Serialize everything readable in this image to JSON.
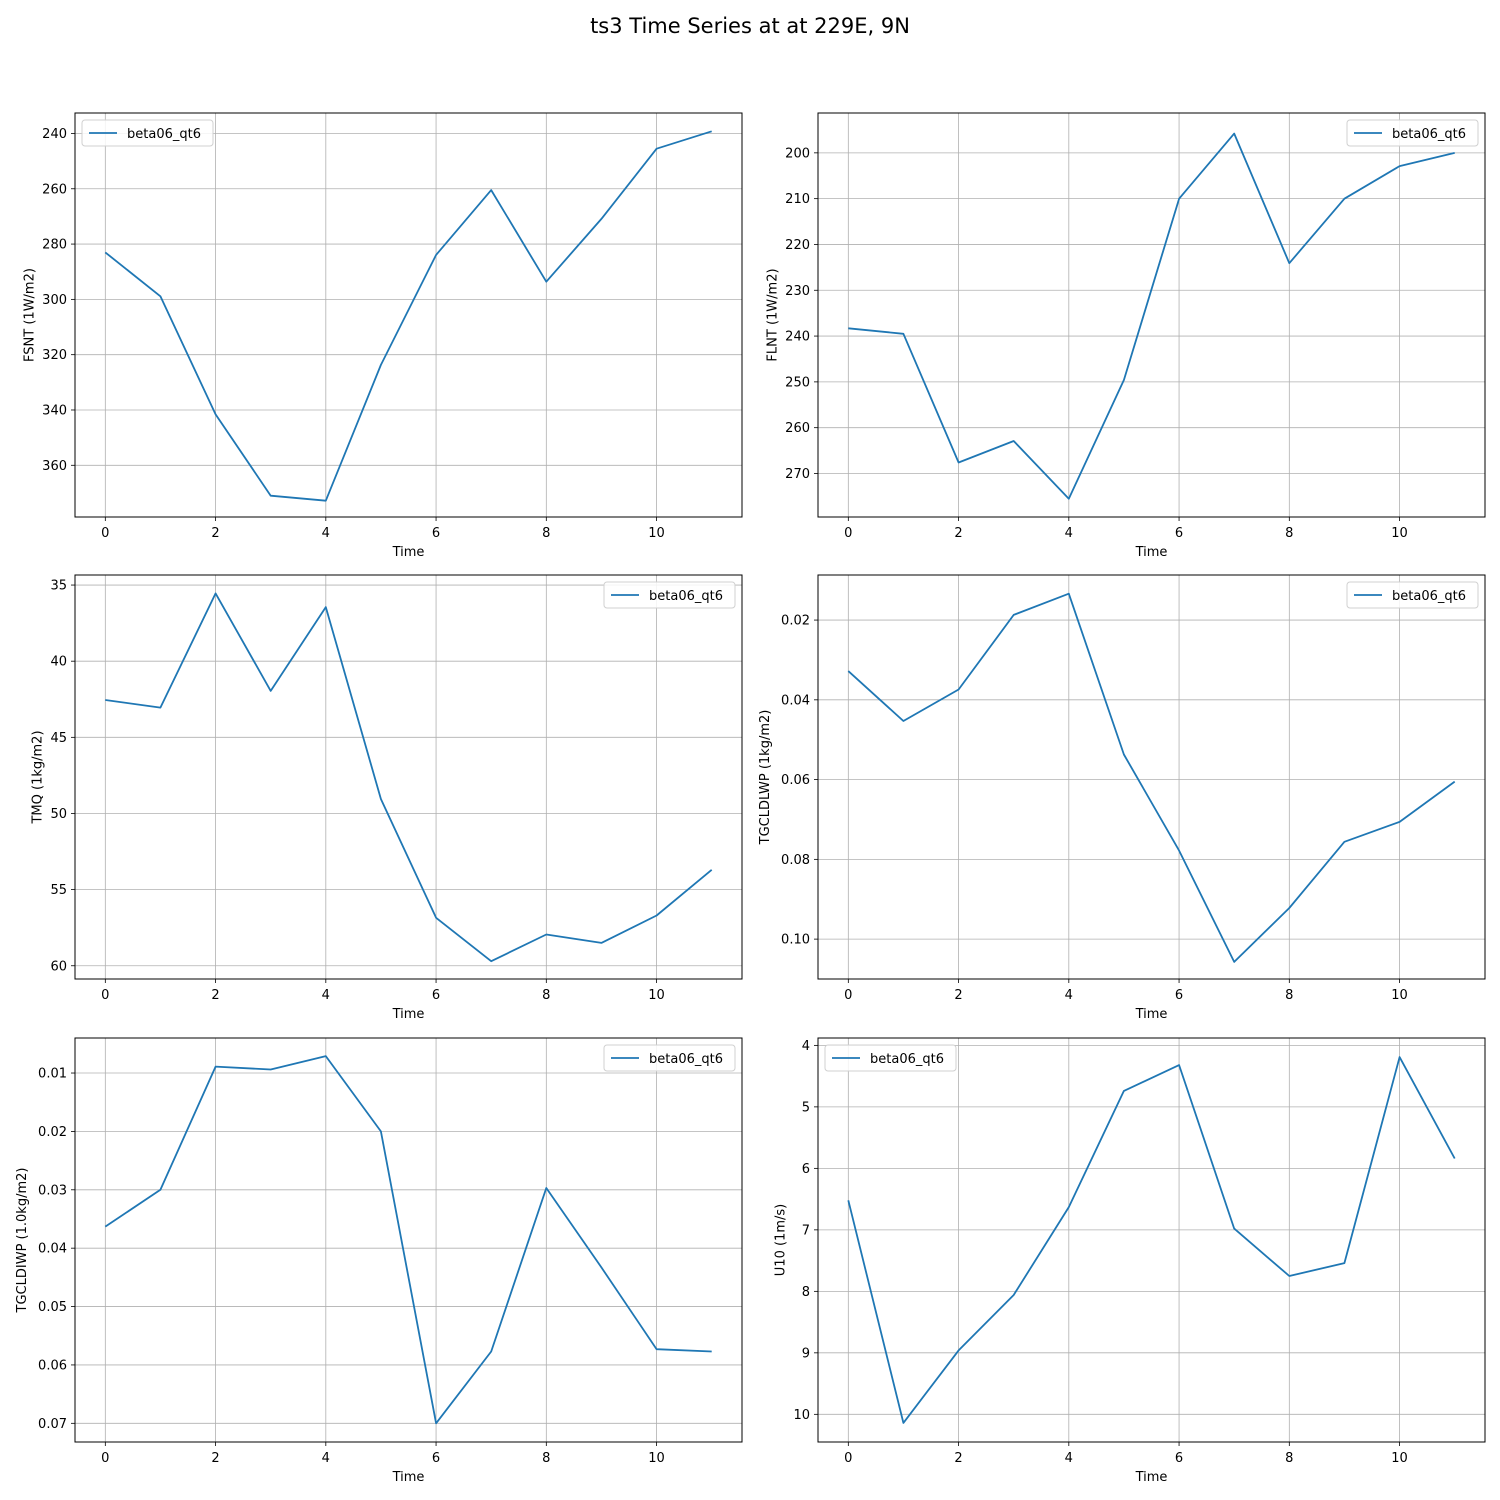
{
  "figure": {
    "title": "ts3 Time Series at at 229E, 9N"
  },
  "chart_data": [
    {
      "type": "line",
      "xlabel": "Time",
      "ylabel": "FSNT (1W/m2)",
      "x": [
        0,
        1,
        2,
        3,
        4,
        5,
        6,
        7,
        8,
        9,
        10,
        11
      ],
      "series": [
        {
          "name": "beta06_qt6",
          "color": "#1f77b4",
          "values": [
            283.0,
            298.9,
            341.6,
            371.0,
            372.8,
            323.7,
            283.9,
            260.5,
            293.6,
            270.9,
            245.5,
            239.2
          ]
        }
      ],
      "xlim": [
        -0.55,
        11.55
      ],
      "ylim": [
        378.7,
        232.6
      ],
      "inverted_y": true,
      "xticks": [
        0,
        2,
        4,
        6,
        8,
        10
      ],
      "yticks": [
        240,
        260,
        280,
        300,
        320,
        340,
        360
      ],
      "ytick_labels": [
        "240",
        "260",
        "280",
        "300",
        "320",
        "340",
        "360"
      ],
      "legend_position": "top-left",
      "grid": true
    },
    {
      "type": "line",
      "xlabel": "Time",
      "ylabel": "FLNT (1W/m2)",
      "x": [
        0,
        1,
        2,
        3,
        4,
        5,
        6,
        7,
        8,
        9,
        10,
        11
      ],
      "series": [
        {
          "name": "beta06_qt6",
          "color": "#1f77b4",
          "values": [
            238.3,
            239.5,
            267.6,
            262.9,
            275.5,
            249.6,
            210.0,
            195.8,
            224.1,
            210.0,
            202.9,
            200.0
          ]
        }
      ],
      "xlim": [
        -0.55,
        11.55
      ],
      "ylim": [
        279.5,
        191.3
      ],
      "inverted_y": true,
      "xticks": [
        0,
        2,
        4,
        6,
        8,
        10
      ],
      "yticks": [
        200,
        210,
        220,
        230,
        240,
        250,
        260,
        270
      ],
      "ytick_labels": [
        "200",
        "210",
        "220",
        "230",
        "240",
        "250",
        "260",
        "270"
      ],
      "legend_position": "top-right",
      "grid": true
    },
    {
      "type": "line",
      "xlabel": "Time",
      "ylabel": "TMQ (1kg/m2)",
      "x": [
        0,
        1,
        2,
        3,
        4,
        5,
        6,
        7,
        8,
        9,
        10,
        11
      ],
      "series": [
        {
          "name": "beta06_qt6",
          "color": "#1f77b4",
          "values": [
            42.55,
            43.05,
            35.55,
            41.95,
            36.45,
            49.05,
            56.85,
            59.7,
            57.95,
            58.5,
            56.7,
            53.7
          ]
        }
      ],
      "xlim": [
        -0.55,
        11.55
      ],
      "ylim": [
        60.87,
        34.34
      ],
      "inverted_y": true,
      "xticks": [
        0,
        2,
        4,
        6,
        8,
        10
      ],
      "yticks": [
        35,
        40,
        45,
        50,
        55,
        60
      ],
      "ytick_labels": [
        "35",
        "40",
        "45",
        "50",
        "55",
        "60"
      ],
      "legend_position": "top-right",
      "grid": true
    },
    {
      "type": "line",
      "xlabel": "Time",
      "ylabel": "TGCLDLWP (1kg/m2)",
      "x": [
        0,
        1,
        2,
        3,
        4,
        5,
        6,
        7,
        8,
        9,
        10,
        11
      ],
      "series": [
        {
          "name": "beta06_qt6",
          "color": "#1f77b4",
          "values": [
            0.0328,
            0.0453,
            0.0374,
            0.0187,
            0.0134,
            0.0537,
            0.0778,
            0.1057,
            0.0922,
            0.0756,
            0.0706,
            0.0605
          ]
        }
      ],
      "xlim": [
        -0.55,
        11.55
      ],
      "ylim": [
        0.11,
        0.0087
      ],
      "inverted_y": true,
      "xticks": [
        0,
        2,
        4,
        6,
        8,
        10
      ],
      "yticks": [
        0.02,
        0.04,
        0.06,
        0.08,
        0.1
      ],
      "ytick_labels": [
        "0.02",
        "0.04",
        "0.06",
        "0.08",
        "0.10"
      ],
      "legend_position": "top-right",
      "grid": true
    },
    {
      "type": "line",
      "xlabel": "Time",
      "ylabel": "TGCLDIWP (1.0kg/m2)",
      "x": [
        0,
        1,
        2,
        3,
        4,
        5,
        6,
        7,
        8,
        9,
        10,
        11
      ],
      "series": [
        {
          "name": "beta06_qt6",
          "color": "#1f77b4",
          "values": [
            0.0363,
            0.03,
            0.0089,
            0.0094,
            0.0071,
            0.02,
            0.07,
            0.0577,
            0.0297,
            0.0433,
            0.0573,
            0.0577
          ]
        }
      ],
      "xlim": [
        -0.55,
        11.55
      ],
      "ylim": [
        0.0732,
        0.004
      ],
      "inverted_y": true,
      "xticks": [
        0,
        2,
        4,
        6,
        8,
        10
      ],
      "yticks": [
        0.01,
        0.02,
        0.03,
        0.04,
        0.05,
        0.06,
        0.07
      ],
      "ytick_labels": [
        "0.01",
        "0.02",
        "0.03",
        "0.04",
        "0.05",
        "0.06",
        "0.07"
      ],
      "legend_position": "top-right",
      "grid": true
    },
    {
      "type": "line",
      "xlabel": "Time",
      "ylabel": "U10 (1m/s)",
      "x": [
        0,
        1,
        2,
        3,
        4,
        5,
        6,
        7,
        8,
        9,
        10,
        11
      ],
      "series": [
        {
          "name": "beta06_qt6",
          "color": "#1f77b4",
          "values": [
            6.52,
            10.14,
            8.96,
            8.06,
            6.63,
            4.74,
            4.32,
            6.98,
            7.75,
            7.54,
            4.19,
            5.84
          ]
        }
      ],
      "xlim": [
        -0.55,
        11.55
      ],
      "ylim": [
        10.45,
        3.88
      ],
      "inverted_y": true,
      "xticks": [
        0,
        2,
        4,
        6,
        8,
        10
      ],
      "yticks": [
        4,
        5,
        6,
        7,
        8,
        9,
        10
      ],
      "ytick_labels": [
        "4",
        "5",
        "6",
        "7",
        "8",
        "9",
        "10"
      ],
      "legend_position": "top-left",
      "grid": true
    }
  ]
}
